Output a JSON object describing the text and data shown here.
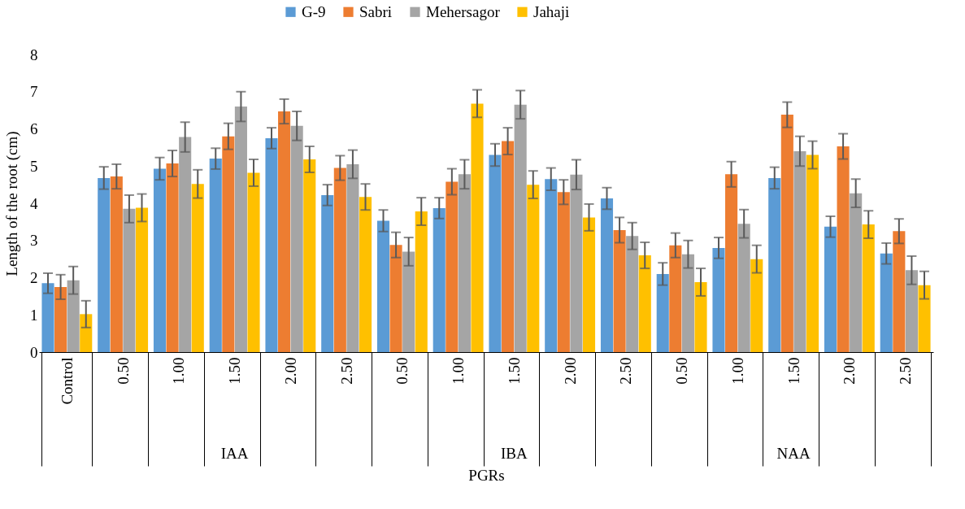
{
  "chart_data": {
    "type": "bar",
    "xlabel": "PGRs",
    "ylabel": "Length of the root (cm)",
    "categories": [
      "Control",
      "0.50",
      "1.00",
      "1.50",
      "2.00",
      "2.50",
      "0.50",
      "1.00",
      "1.50",
      "2.00",
      "2.50",
      "0.50",
      "1.00",
      "1.50",
      "2.00",
      "2.50"
    ],
    "series": [
      {
        "name": "G-9",
        "color": "#5b9bd5",
        "values": [
          1.85,
          4.68,
          4.93,
          5.2,
          5.75,
          4.22,
          3.53,
          3.87,
          5.3,
          4.65,
          4.13,
          2.1,
          2.8,
          4.68,
          3.37,
          2.65
        ],
        "errors": [
          0.27,
          0.3,
          0.3,
          0.28,
          0.28,
          0.28,
          0.29,
          0.28,
          0.3,
          0.3,
          0.29,
          0.3,
          0.28,
          0.29,
          0.28,
          0.28
        ]
      },
      {
        "name": "Sabri",
        "color": "#ed7d31",
        "values": [
          1.75,
          4.72,
          5.07,
          5.8,
          6.47,
          4.95,
          2.88,
          4.58,
          5.67,
          4.3,
          3.28,
          2.87,
          4.78,
          6.38,
          5.53,
          3.25
        ],
        "errors": [
          0.33,
          0.33,
          0.35,
          0.35,
          0.33,
          0.33,
          0.34,
          0.35,
          0.36,
          0.33,
          0.34,
          0.33,
          0.34,
          0.34,
          0.34,
          0.33
        ]
      },
      {
        "name": "Mehersagor",
        "color": "#a5a5a5",
        "values": [
          1.93,
          3.85,
          5.78,
          6.6,
          6.08,
          5.05,
          2.7,
          4.78,
          6.65,
          4.77,
          3.12,
          2.63,
          3.45,
          5.4,
          4.27,
          2.2
        ],
        "errors": [
          0.37,
          0.37,
          0.4,
          0.4,
          0.39,
          0.38,
          0.38,
          0.39,
          0.38,
          0.4,
          0.36,
          0.37,
          0.38,
          0.4,
          0.38,
          0.38
        ]
      },
      {
        "name": "Jahaji",
        "color": "#ffc000",
        "values": [
          1.02,
          3.88,
          4.52,
          4.82,
          5.18,
          4.17,
          3.78,
          6.68,
          4.5,
          3.62,
          2.6,
          1.88,
          2.5,
          5.3,
          3.43,
          1.8
        ],
        "errors": [
          0.36,
          0.37,
          0.38,
          0.36,
          0.35,
          0.35,
          0.37,
          0.37,
          0.37,
          0.36,
          0.35,
          0.37,
          0.37,
          0.37,
          0.37,
          0.37
        ]
      }
    ],
    "annotations": [
      "IAA",
      "IBA",
      "NAA"
    ],
    "ylim": [
      0,
      8
    ],
    "yticks": [
      0,
      1,
      2,
      3,
      4,
      5,
      6,
      7,
      8
    ],
    "grid": false,
    "legend": "top"
  }
}
